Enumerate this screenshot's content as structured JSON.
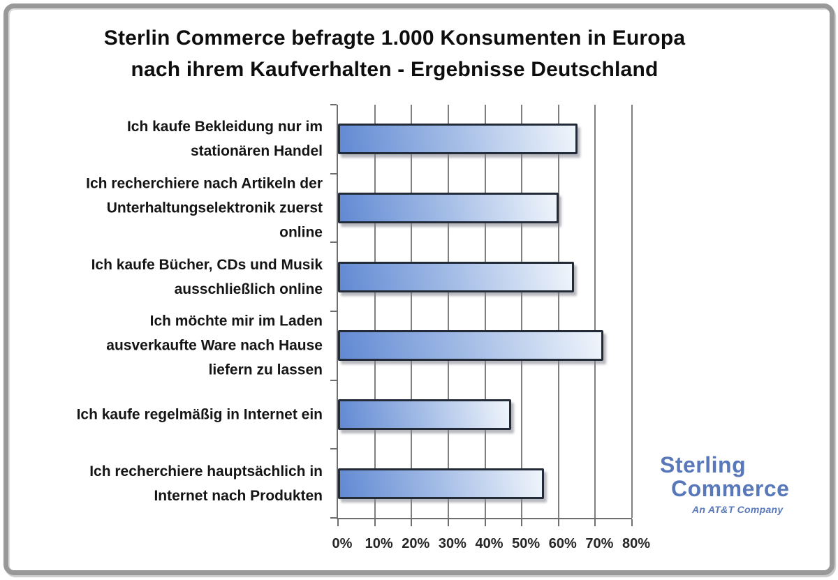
{
  "header": {
    "title_line1": "Sterlin Commerce befragte 1.000 Konsumenten in Europa",
    "title_line2": "nach ihrem Kaufverhalten - Ergebnisse Deutschland"
  },
  "chart_data": {
    "type": "bar",
    "orientation": "horizontal",
    "title": "Sterlin Commerce befragte 1.000 Konsumenten in Europa nach ihrem Kaufverhalten - Ergebnisse Deutschland",
    "categories": [
      "Ich kaufe Bekleidung nur im stationären Handel",
      "Ich recherchiere nach Artikeln der Unterhaltungselektronik zuerst online",
      "Ich kaufe Bücher, CDs und Musik ausschließlich online",
      "Ich möchte mir im Laden ausverkaufte Ware nach Hause liefern zu lassen",
      "Ich kaufe regelmäßig in Internet ein",
      "Ich recherchiere hauptsächlich in Internet nach Produkten"
    ],
    "category_lines": [
      [
        "Ich kaufe Bekleidung nur im",
        "stationären Handel"
      ],
      [
        "Ich recherchiere nach Artikeln der",
        "Unterhaltungselektronik zuerst",
        "online"
      ],
      [
        "Ich kaufe Bücher, CDs und Musik",
        "ausschließlich online"
      ],
      [
        "Ich möchte mir im Laden",
        "ausverkaufte Ware nach Hause",
        "liefern zu lassen"
      ],
      [
        "Ich kaufe regelmäßig in Internet ein"
      ],
      [
        "Ich recherchiere hauptsächlich in",
        "Internet nach Produkten"
      ]
    ],
    "values": [
      64,
      59,
      63,
      71,
      46,
      55
    ],
    "unit": "%",
    "xlim": [
      0,
      80
    ],
    "x_tick_labels": [
      "0%",
      "10%",
      "20%",
      "30%",
      "40%",
      "50%",
      "60%",
      "70%",
      "80%"
    ],
    "grid": "vertical gridlines every 10%",
    "legend": "none",
    "bar_gradient_start": "#6189d3",
    "bar_gradient_end": "#f0f5fb",
    "bar_border_color": "#232a38",
    "gridline_color": "#7f7f7f"
  },
  "logo": {
    "line1": "Sterling",
    "line2": "Commerce",
    "tagline": "An AT&T Company",
    "color": "#5878ba"
  }
}
